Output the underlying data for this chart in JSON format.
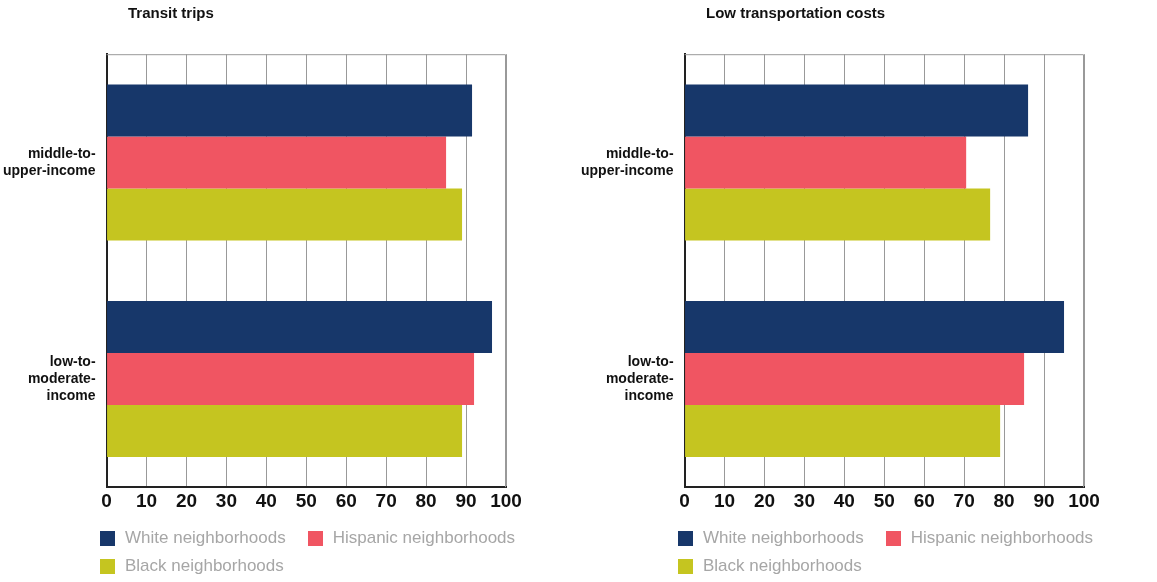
{
  "chart_data": [
    {
      "type": "bar",
      "orientation": "horizontal",
      "title": "Transit trips",
      "categories": [
        "middle-to-upper-income",
        "low-to-moderate-income"
      ],
      "series": [
        {
          "name": "White neighborhoods",
          "color": "#17376a",
          "values": [
            91.5,
            96.5
          ]
        },
        {
          "name": "Hispanic neighborhoods",
          "color": "#f05562",
          "values": [
            85,
            92
          ]
        },
        {
          "name": "Black neighborhoods",
          "color": "#c5c520",
          "values": [
            89,
            89
          ]
        }
      ],
      "xlim": [
        0,
        100
      ],
      "xticks": [
        0,
        10,
        20,
        30,
        40,
        50,
        60,
        70,
        80,
        90,
        100
      ],
      "grid": "x",
      "legend": "bottom"
    },
    {
      "type": "bar",
      "orientation": "horizontal",
      "title": "Low transportation costs",
      "categories": [
        "middle-to-upper-income",
        "low-to-moderate-income"
      ],
      "series": [
        {
          "name": "White neighborhoods",
          "color": "#17376a",
          "values": [
            86,
            95
          ]
        },
        {
          "name": "Hispanic neighborhoods",
          "color": "#f05562",
          "values": [
            70.5,
            85
          ]
        },
        {
          "name": "Black neighborhoods",
          "color": "#c5c520",
          "values": [
            76.5,
            79
          ]
        }
      ],
      "xlim": [
        0,
        100
      ],
      "xticks": [
        0,
        10,
        20,
        30,
        40,
        50,
        60,
        70,
        80,
        90,
        100
      ],
      "grid": "x",
      "legend": "bottom"
    }
  ]
}
